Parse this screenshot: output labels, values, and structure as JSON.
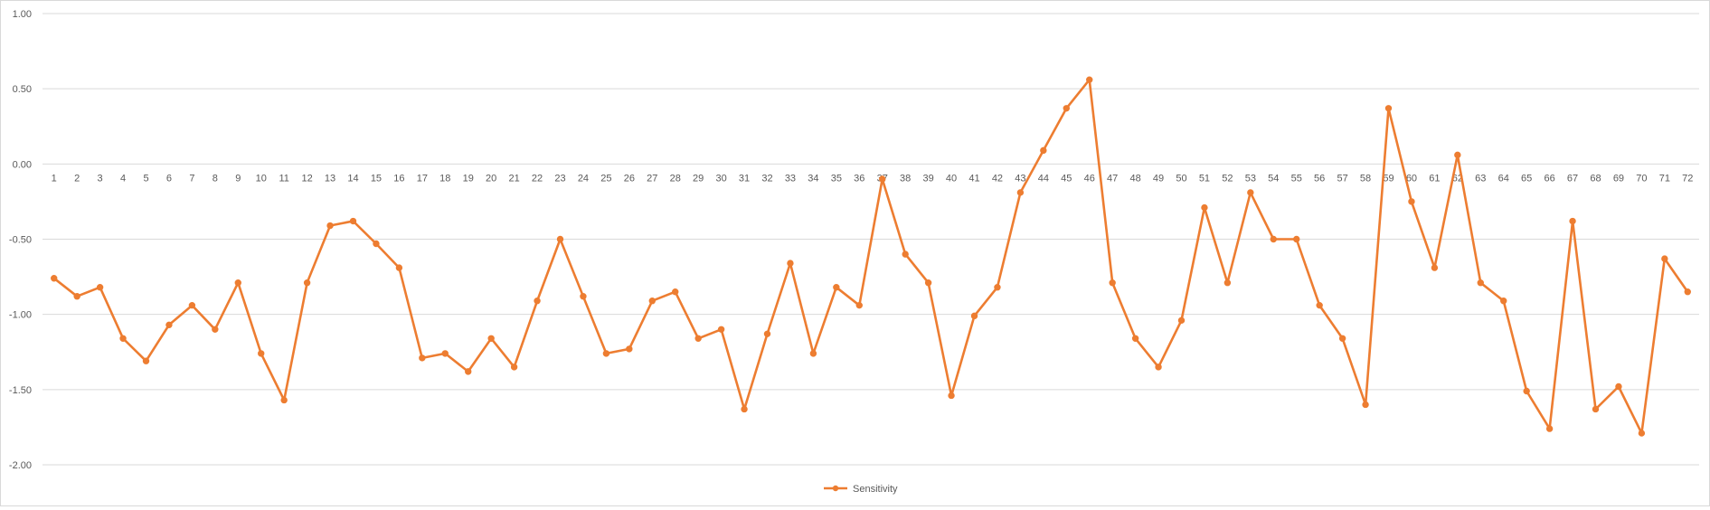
{
  "chart_data": {
    "type": "line",
    "x": [
      "1",
      "2",
      "3",
      "4",
      "5",
      "6",
      "7",
      "8",
      "9",
      "10",
      "11",
      "12",
      "13",
      "14",
      "15",
      "16",
      "17",
      "18",
      "19",
      "20",
      "21",
      "22",
      "23",
      "24",
      "25",
      "26",
      "27",
      "28",
      "29",
      "30",
      "31",
      "32",
      "33",
      "34",
      "35",
      "36",
      "37",
      "38",
      "39",
      "40",
      "41",
      "42",
      "43",
      "44",
      "45",
      "46",
      "47",
      "48",
      "49",
      "50",
      "51",
      "52",
      "53",
      "54",
      "55",
      "56",
      "57",
      "58",
      "59",
      "60",
      "61",
      "62",
      "63",
      "64",
      "65",
      "66",
      "67",
      "68",
      "69",
      "70",
      "71",
      "72"
    ],
    "series": [
      {
        "name": "Sensitivity",
        "color": "#ED7D31",
        "values": [
          -0.76,
          -0.88,
          -0.82,
          -1.16,
          -1.31,
          -1.07,
          -0.94,
          -1.1,
          -0.79,
          -1.26,
          -1.57,
          -0.79,
          -0.41,
          -0.38,
          -0.53,
          -0.69,
          -1.29,
          -1.26,
          -1.38,
          -1.16,
          -1.35,
          -0.91,
          -0.5,
          -0.88,
          -1.26,
          -1.23,
          -0.91,
          -0.85,
          -1.16,
          -1.1,
          -1.63,
          -1.13,
          -0.66,
          -1.26,
          -0.82,
          -0.94,
          -0.1,
          -0.6,
          -0.79,
          -1.54,
          -1.01,
          -0.82,
          -0.19,
          0.09,
          0.37,
          0.56,
          -0.79,
          -1.16,
          -1.35,
          -1.04,
          -0.29,
          -0.79,
          -0.19,
          -0.5,
          -0.5,
          -0.94,
          -1.16,
          -1.6,
          0.37,
          -0.25,
          -0.69,
          0.06,
          -0.79,
          -0.91,
          -1.51,
          -1.76,
          -0.38,
          -1.63,
          -1.48,
          -1.79,
          -0.63,
          -0.85
        ]
      }
    ],
    "yticks": [
      "1.00",
      "0.50",
      "0.00",
      "-0.50",
      "-1.00",
      "-1.50",
      "-2.00"
    ],
    "ylim": [
      -2.0,
      1.0
    ],
    "grid": true,
    "legend": "bottom-center"
  }
}
